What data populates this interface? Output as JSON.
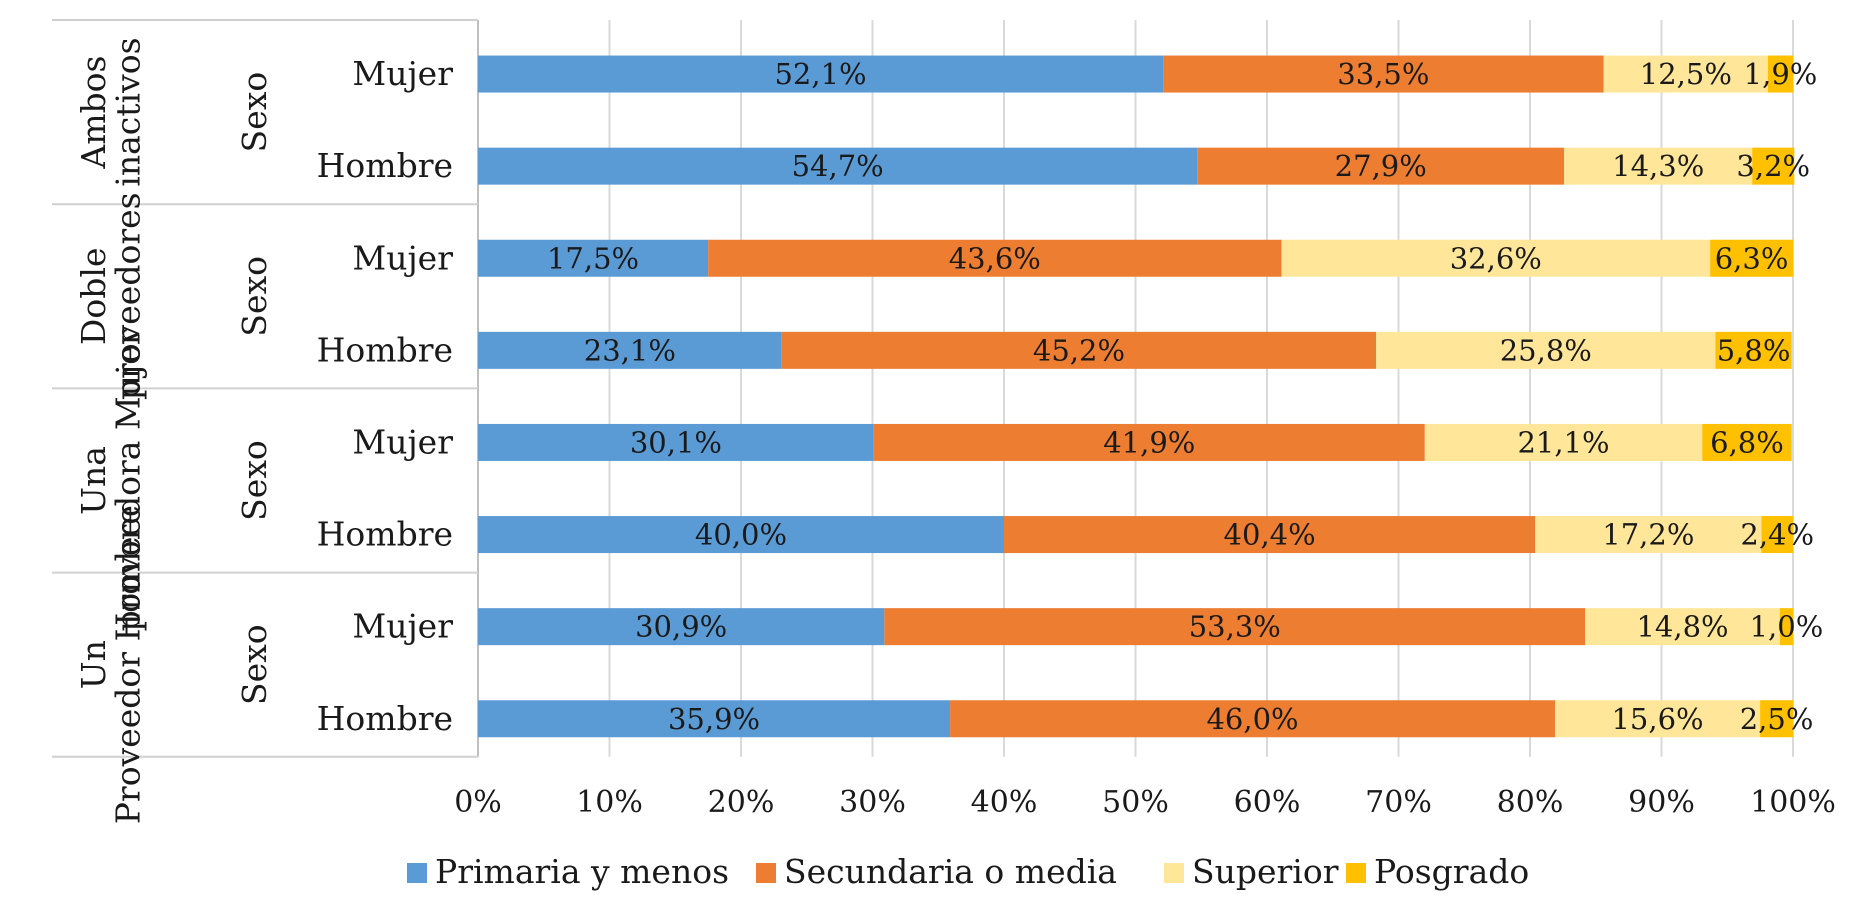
{
  "chart_data": {
    "type": "bar",
    "orientation": "horizontal",
    "stacked": "percent",
    "title": "",
    "xlabel": "",
    "ylabel": "",
    "xlim": [
      0,
      100
    ],
    "x_ticks": [
      "0%",
      "10%",
      "20%",
      "30%",
      "40%",
      "50%",
      "60%",
      "70%",
      "80%",
      "90%",
      "100%"
    ],
    "grid": "vertical",
    "legend_position": "bottom",
    "groups": [
      {
        "label": "Ambos inactivos",
        "sublabel": "Sexo",
        "rows": [
          "Mujer",
          "Hombre"
        ]
      },
      {
        "label": "Doble proveedores",
        "sublabel": "Sexo",
        "rows": [
          "Mujer",
          "Hombre"
        ]
      },
      {
        "label": "Una proveedora Mujer",
        "sublabel": "Sexo",
        "rows": [
          "Mujer",
          "Hombre"
        ]
      },
      {
        "label": "Un Proveedor Hombre",
        "sublabel": "Sexo",
        "rows": [
          "Mujer",
          "Hombre"
        ]
      }
    ],
    "series": [
      {
        "name": "Primaria y menos",
        "color": "#5B9BD5",
        "values": [
          52.1,
          54.7,
          17.5,
          23.1,
          30.1,
          40.0,
          30.9,
          35.9
        ],
        "labels": [
          "52,1%",
          "54,7%",
          "17,5%",
          "23,1%",
          "30,1%",
          "40,0%",
          "30,9%",
          "35,9%"
        ]
      },
      {
        "name": "Secundaria o media",
        "color": "#ED7D31",
        "values": [
          33.5,
          27.9,
          43.6,
          45.2,
          41.9,
          40.4,
          53.3,
          46.0
        ],
        "labels": [
          "33,5%",
          "27,9%",
          "43,6%",
          "45,2%",
          "41,9%",
          "40,4%",
          "53,3%",
          "46,0%"
        ]
      },
      {
        "name": "Superior",
        "color": "#FFE699",
        "values": [
          12.5,
          14.3,
          32.6,
          25.8,
          21.1,
          17.2,
          14.8,
          15.6
        ],
        "labels": [
          "12,5%",
          "14,3%",
          "32,6%",
          "25,8%",
          "21,1%",
          "17,2%",
          "14,8%",
          "15,6%"
        ]
      },
      {
        "name": "Posgrado",
        "color": "#FFC000",
        "values": [
          1.9,
          3.2,
          6.3,
          5.8,
          6.8,
          2.4,
          1.0,
          2.5
        ],
        "labels": [
          "1,9%",
          "3,2%",
          "6,3%",
          "5,8%",
          "6,8%",
          "2,4%",
          "1,0%",
          "2,5%"
        ]
      }
    ]
  }
}
